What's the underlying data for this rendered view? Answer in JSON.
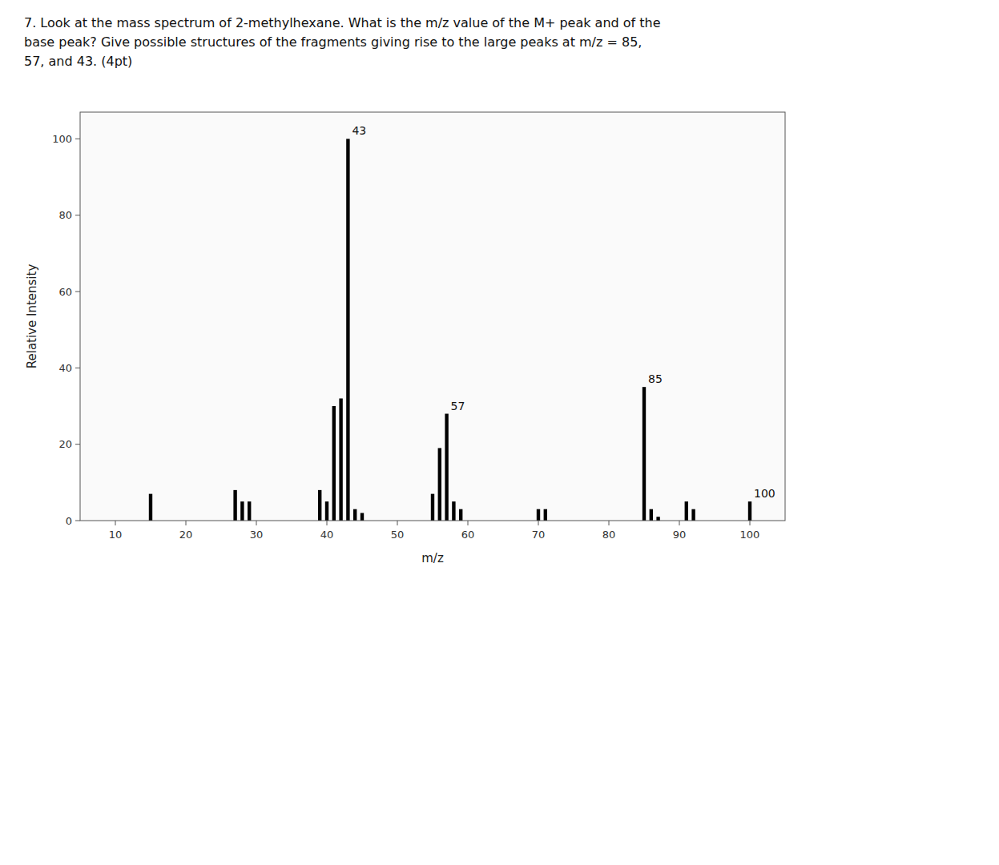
{
  "chart_data": {
    "type": "bar",
    "title": "7. Look at the mass spectrum of 2-methylhexane. What is the m/z value of the M+ peak and of the\nbase peak? Give possible structures of the fragments giving rise to the large peaks at m/z = 85,\n57, and 43. (4pt)",
    "x_label": "m/z",
    "y_label": "Relative Intensity",
    "x": [
      15,
      27,
      28,
      29,
      39,
      40,
      41,
      42,
      43,
      44,
      45,
      55,
      56,
      57,
      58,
      59,
      70,
      71,
      85,
      86,
      87,
      91,
      92,
      100
    ],
    "values": [
      7,
      8,
      5,
      5,
      8,
      5,
      30,
      32,
      100,
      3,
      2,
      7,
      19,
      28,
      5,
      3,
      3,
      3,
      35,
      3,
      1,
      5,
      3,
      5
    ],
    "color": "#000000",
    "xlim": [
      5,
      105
    ],
    "ylim": [
      0,
      107
    ],
    "xticks": [
      10,
      20,
      30,
      40,
      50,
      60,
      70,
      80,
      90,
      100
    ],
    "yticks": [
      0,
      20,
      40,
      60,
      80,
      100
    ],
    "grid": false,
    "annotations": [
      {
        "text": "43",
        "x": 43,
        "y": 100
      },
      {
        "text": "57",
        "x": 57,
        "y": 28
      },
      {
        "text": "85",
        "x": 85,
        "y": 35
      },
      {
        "text": "100",
        "x": 100,
        "y": 5
      }
    ]
  }
}
